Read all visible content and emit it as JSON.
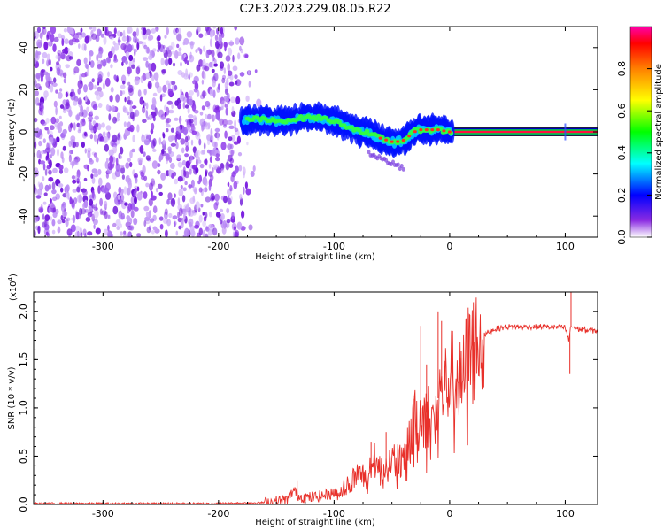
{
  "title": "C2E3.2023.229.08.05.R22",
  "chart_data": [
    {
      "type": "heatmap",
      "xlabel": "Height of straight line (km)",
      "ylabel": "Frequency (Hz)",
      "xlim": [
        -360,
        128
      ],
      "ylim": [
        -50,
        50
      ],
      "xticks": [
        -300,
        -200,
        -100,
        0,
        100
      ],
      "yticks": [
        -40,
        -20,
        0,
        20,
        40
      ],
      "noise_region_x": [
        -360,
        -163
      ],
      "signal_trace": {
        "x": [
          -180,
          -165,
          -150,
          -135,
          -120,
          -105,
          -90,
          -75,
          -60,
          -48,
          -40,
          -35,
          -28,
          -20,
          -10,
          0,
          10,
          50,
          100,
          128
        ],
        "frequency": [
          6,
          6,
          5,
          6,
          7,
          6,
          3,
          0,
          -3,
          -5,
          -4,
          -2,
          1,
          1,
          1,
          0,
          0,
          0,
          0,
          0
        ]
      },
      "colorbar": {
        "label": "Normalized spectral amplitude",
        "range": [
          0.0,
          1.0
        ],
        "ticks": [
          0.0,
          0.2,
          0.4,
          0.6,
          0.8
        ],
        "tick_labels": [
          "0.0",
          "0.2",
          "0.4",
          "0.6",
          "0.8"
        ],
        "colors": [
          "#ffffff",
          "#8a2be2",
          "#0000ff",
          "#00ffff",
          "#00ff00",
          "#ffff00",
          "#ff8000",
          "#ff0000",
          "#ff00aa"
        ]
      }
    },
    {
      "type": "line",
      "xlabel": "Height of straight line (km)",
      "ylabel": "SNR (10 * v/v)",
      "scale_label": "(x10",
      "scale_exponent": "4",
      "scale_close": ")",
      "xlim": [
        -360,
        128
      ],
      "ylim": [
        0,
        2.2
      ],
      "xticks": [
        -300,
        -200,
        -100,
        0,
        100
      ],
      "yticks": [
        0.0,
        0.5,
        1.0,
        1.5,
        2.0
      ],
      "ytick_labels": [
        "0.0",
        "0.5",
        "1.0",
        "1.5",
        "2.0"
      ],
      "color": "#e8302a",
      "series": [
        {
          "x": [
            -360,
            -300,
            -200,
            -160,
            -145,
            -140,
            -135,
            -130,
            -120,
            -110,
            -100,
            -90,
            -80,
            -70,
            -65,
            -60,
            -55,
            -50,
            -45,
            -40,
            -35,
            -30,
            -25,
            -20,
            -15,
            -10,
            -5,
            0,
            5,
            10,
            15,
            20,
            25,
            30,
            35,
            40,
            50,
            60,
            80,
            100,
            103,
            105,
            110,
            120,
            128
          ],
          "y": [
            0.01,
            0.01,
            0.01,
            0.02,
            0.04,
            0.05,
            0.15,
            0.08,
            0.07,
            0.09,
            0.12,
            0.18,
            0.3,
            0.3,
            0.45,
            0.35,
            0.4,
            0.45,
            0.5,
            0.4,
            0.7,
            0.85,
            0.9,
            0.95,
            0.85,
            1.1,
            1.2,
            1.3,
            1.35,
            1.2,
            1.5,
            1.6,
            1.7,
            1.75,
            1.8,
            1.82,
            1.84,
            1.84,
            1.84,
            1.83,
            1.7,
            1.85,
            1.82,
            1.8,
            1.8
          ]
        }
      ],
      "spikes": [
        {
          "x": -132,
          "y": 0.25
        },
        {
          "x": -68,
          "y": 0.65
        },
        {
          "x": -55,
          "y": 0.75
        },
        {
          "x": -25,
          "y": 1.85
        },
        {
          "x": -20,
          "y": 1.45
        },
        {
          "x": -10,
          "y": 2.0
        },
        {
          "x": -7,
          "y": 1.9
        },
        {
          "x": 105,
          "y": 2.2
        },
        {
          "x": 104,
          "y": 1.35
        }
      ]
    }
  ]
}
